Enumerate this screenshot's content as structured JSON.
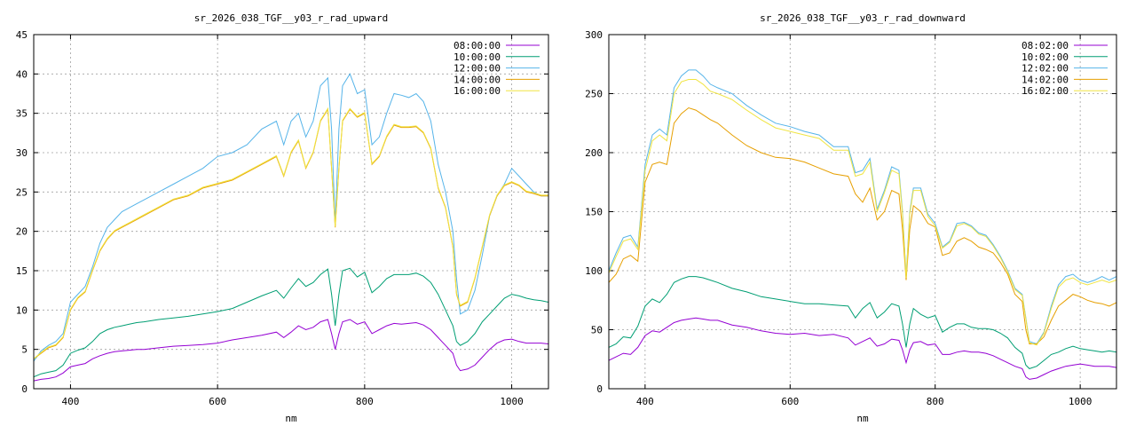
{
  "chart_data": [
    {
      "type": "line",
      "title": "sr_2026_038_TGF__y03_r_rad_upward",
      "xlabel": "nm",
      "ylabel": "",
      "xlim": [
        350,
        1050
      ],
      "ylim": [
        0,
        45
      ],
      "xticks": [
        400,
        600,
        800,
        1000
      ],
      "yticks": [
        0,
        5,
        10,
        15,
        20,
        25,
        30,
        35,
        40,
        45
      ],
      "grid": true,
      "legend_position": "top-right",
      "x": [
        350,
        360,
        370,
        380,
        390,
        400,
        410,
        420,
        430,
        440,
        450,
        460,
        470,
        480,
        490,
        500,
        520,
        540,
        560,
        580,
        600,
        620,
        640,
        660,
        680,
        690,
        700,
        710,
        720,
        730,
        740,
        750,
        755,
        760,
        765,
        770,
        780,
        790,
        800,
        810,
        820,
        830,
        840,
        850,
        860,
        870,
        880,
        890,
        900,
        910,
        920,
        925,
        930,
        940,
        950,
        960,
        970,
        980,
        990,
        1000,
        1010,
        1020,
        1030,
        1040,
        1050
      ],
      "series": [
        {
          "name": "08:00:00",
          "color": "#9400d3",
          "values": [
            1.0,
            1.2,
            1.3,
            1.5,
            2.0,
            2.8,
            3.0,
            3.2,
            3.8,
            4.2,
            4.5,
            4.7,
            4.8,
            4.9,
            5.0,
            5.0,
            5.2,
            5.4,
            5.5,
            5.6,
            5.8,
            6.2,
            6.5,
            6.8,
            7.2,
            6.5,
            7.2,
            8.0,
            7.5,
            7.8,
            8.5,
            8.8,
            7.0,
            5.0,
            7.0,
            8.5,
            8.8,
            8.2,
            8.5,
            7.0,
            7.5,
            8.0,
            8.3,
            8.2,
            8.3,
            8.4,
            8.1,
            7.5,
            6.5,
            5.5,
            4.5,
            3.0,
            2.3,
            2.5,
            3.0,
            4.0,
            5.0,
            5.8,
            6.2,
            6.3,
            6.0,
            5.8,
            5.8,
            5.8,
            5.7
          ]
        },
        {
          "name": "10:00:00",
          "color": "#009e73",
          "values": [
            1.5,
            1.9,
            2.1,
            2.3,
            3.0,
            4.5,
            4.9,
            5.2,
            6.0,
            7.0,
            7.5,
            7.8,
            8.0,
            8.2,
            8.4,
            8.5,
            8.8,
            9.0,
            9.2,
            9.5,
            9.8,
            10.2,
            11.0,
            11.8,
            12.5,
            11.5,
            12.8,
            14.0,
            13.0,
            13.5,
            14.5,
            15.2,
            12.0,
            8.0,
            12.0,
            15.0,
            15.3,
            14.2,
            14.8,
            12.2,
            13.0,
            14.0,
            14.5,
            14.5,
            14.5,
            14.7,
            14.3,
            13.5,
            12.0,
            10.0,
            8.0,
            6.0,
            5.5,
            6.0,
            7.0,
            8.5,
            9.5,
            10.5,
            11.5,
            12.0,
            11.8,
            11.5,
            11.3,
            11.2,
            11.0
          ]
        },
        {
          "name": "12:00:00",
          "color": "#56b4e9",
          "values": [
            3.5,
            4.8,
            5.5,
            6.0,
            7.0,
            11.0,
            12.0,
            13.0,
            15.5,
            18.5,
            20.5,
            21.5,
            22.5,
            23.0,
            23.5,
            24.0,
            25.0,
            26.0,
            27.0,
            28.0,
            29.5,
            30.0,
            31.0,
            33.0,
            34.0,
            31.0,
            34.0,
            35.0,
            32.0,
            34.0,
            38.5,
            39.5,
            33.0,
            21.0,
            33.0,
            38.5,
            40.0,
            37.5,
            38.0,
            31.0,
            32.0,
            35.0,
            37.5,
            37.3,
            37.0,
            37.5,
            36.5,
            34.0,
            28.5,
            25.0,
            20.0,
            14.0,
            9.5,
            10.0,
            12.5,
            17.0,
            22.0,
            24.5,
            26.0,
            28.0,
            27.0,
            26.0,
            25.0,
            24.5,
            24.5
          ]
        },
        {
          "name": "14:00:00",
          "color": "#e69f00",
          "values": [
            3.8,
            4.5,
            5.2,
            5.5,
            6.5,
            10.0,
            11.5,
            12.3,
            15.0,
            17.5,
            19.0,
            20.0,
            20.5,
            21.0,
            21.5,
            22.0,
            23.0,
            24.0,
            24.5,
            25.5,
            26.0,
            26.5,
            27.5,
            28.5,
            29.5,
            27.0,
            30.0,
            31.5,
            28.0,
            30.0,
            34.0,
            35.5,
            28.0,
            20.5,
            28.0,
            34.0,
            35.5,
            34.5,
            35.0,
            28.5,
            29.5,
            32.0,
            33.5,
            33.2,
            33.2,
            33.3,
            32.5,
            30.5,
            25.5,
            23.0,
            18.0,
            12.0,
            10.5,
            11.0,
            14.0,
            18.0,
            22.0,
            24.5,
            25.8,
            26.2,
            25.8,
            25.0,
            24.8,
            24.5,
            24.5
          ]
        },
        {
          "name": "16:00:00",
          "color": "#f0e442",
          "values": [
            3.8,
            4.6,
            5.3,
            5.6,
            6.6,
            10.1,
            11.6,
            12.4,
            15.1,
            17.6,
            19.1,
            20.1,
            20.6,
            21.1,
            21.6,
            22.1,
            23.1,
            24.1,
            24.6,
            25.6,
            26.1,
            26.6,
            27.6,
            28.6,
            29.6,
            27.1,
            30.1,
            31.6,
            28.1,
            30.1,
            34.1,
            35.6,
            28.1,
            20.6,
            28.1,
            34.1,
            35.6,
            34.6,
            35.1,
            28.6,
            29.6,
            32.1,
            33.6,
            33.3,
            33.3,
            33.4,
            32.6,
            30.6,
            25.6,
            23.1,
            18.1,
            12.1,
            10.6,
            11.1,
            14.1,
            18.1,
            22.1,
            24.6,
            25.9,
            26.3,
            25.9,
            25.1,
            24.9,
            24.6,
            24.6
          ]
        }
      ]
    },
    {
      "type": "line",
      "title": "sr_2026_038_TGF__y03_r_rad_downward",
      "xlabel": "nm",
      "ylabel": "",
      "xlim": [
        350,
        1050
      ],
      "ylim": [
        0,
        300
      ],
      "xticks": [
        400,
        600,
        800,
        1000
      ],
      "yticks": [
        0,
        50,
        100,
        150,
        200,
        250,
        300
      ],
      "grid": true,
      "legend_position": "top-right",
      "x": [
        350,
        360,
        370,
        380,
        390,
        400,
        410,
        420,
        430,
        440,
        450,
        460,
        470,
        480,
        490,
        500,
        520,
        540,
        560,
        580,
        600,
        620,
        640,
        660,
        680,
        690,
        700,
        710,
        720,
        730,
        740,
        750,
        755,
        760,
        765,
        770,
        780,
        790,
        800,
        810,
        820,
        830,
        840,
        850,
        860,
        870,
        880,
        890,
        900,
        910,
        920,
        925,
        930,
        940,
        950,
        960,
        970,
        980,
        990,
        1000,
        1010,
        1020,
        1030,
        1040,
        1050
      ],
      "series": [
        {
          "name": "08:02:00",
          "color": "#9400d3",
          "values": [
            24,
            27,
            30,
            29,
            35,
            45,
            49,
            48,
            52,
            56,
            58,
            59,
            60,
            59,
            58,
            58,
            54,
            52,
            49,
            47,
            46,
            47,
            45,
            46,
            43,
            37,
            40,
            43,
            36,
            38,
            42,
            41,
            33,
            22,
            33,
            39,
            40,
            37,
            38,
            29,
            29,
            31,
            32,
            31,
            31,
            30,
            28,
            25,
            22,
            19,
            17,
            10,
            8,
            9,
            12,
            15,
            17,
            19,
            20,
            21,
            20,
            19,
            19,
            19,
            18
          ]
        },
        {
          "name": "10:02:00",
          "color": "#009e73",
          "values": [
            35,
            38,
            44,
            43,
            53,
            70,
            76,
            73,
            80,
            90,
            93,
            95,
            95,
            94,
            92,
            90,
            85,
            82,
            78,
            76,
            74,
            72,
            72,
            71,
            70,
            60,
            68,
            73,
            60,
            65,
            72,
            70,
            55,
            35,
            55,
            68,
            63,
            60,
            62,
            48,
            52,
            55,
            55,
            52,
            51,
            51,
            50,
            47,
            43,
            35,
            30,
            20,
            17,
            19,
            24,
            29,
            31,
            34,
            36,
            34,
            33,
            32,
            31,
            32,
            31
          ]
        },
        {
          "name": "12:02:00",
          "color": "#56b4e9",
          "values": [
            100,
            115,
            128,
            130,
            120,
            190,
            215,
            220,
            215,
            255,
            265,
            270,
            270,
            265,
            258,
            255,
            250,
            240,
            232,
            225,
            222,
            218,
            215,
            205,
            205,
            183,
            185,
            195,
            152,
            168,
            188,
            185,
            150,
            95,
            150,
            170,
            170,
            148,
            140,
            120,
            125,
            140,
            141,
            138,
            132,
            130,
            122,
            112,
            100,
            85,
            80,
            60,
            40,
            38,
            48,
            70,
            88,
            95,
            97,
            92,
            90,
            92,
            95,
            92,
            95
          ]
        },
        {
          "name": "14:02:00",
          "color": "#e69f00",
          "values": [
            90,
            97,
            110,
            113,
            108,
            175,
            190,
            192,
            190,
            225,
            233,
            238,
            236,
            232,
            228,
            225,
            215,
            206,
            200,
            196,
            195,
            192,
            187,
            182,
            180,
            165,
            158,
            170,
            143,
            150,
            168,
            165,
            135,
            92,
            135,
            155,
            150,
            140,
            137,
            113,
            115,
            125,
            128,
            125,
            120,
            118,
            115,
            107,
            97,
            80,
            74,
            50,
            38,
            38,
            44,
            58,
            70,
            75,
            80,
            78,
            75,
            73,
            72,
            70,
            73
          ]
        },
        {
          "name": "16:02:00",
          "color": "#f0e442",
          "values": [
            98,
            112,
            125,
            127,
            118,
            185,
            210,
            215,
            210,
            250,
            260,
            262,
            262,
            258,
            252,
            250,
            245,
            236,
            228,
            221,
            218,
            215,
            212,
            202,
            202,
            180,
            182,
            192,
            150,
            166,
            185,
            182,
            148,
            94,
            148,
            168,
            168,
            146,
            138,
            119,
            124,
            138,
            140,
            137,
            131,
            129,
            121,
            111,
            99,
            84,
            79,
            59,
            39,
            37,
            47,
            68,
            86,
            92,
            94,
            90,
            88,
            90,
            92,
            90,
            92
          ]
        }
      ]
    }
  ]
}
